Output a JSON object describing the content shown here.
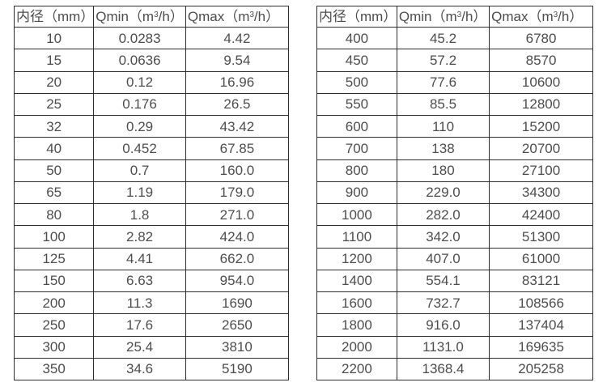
{
  "page": {
    "background_color": "#ffffff",
    "text_color": "#4d4d4d",
    "border_color": "#2e2e2e"
  },
  "tables": [
    {
      "name": "flow-spec-table-small-diameters",
      "headers": [
        {
          "pre": "内径（mm）",
          "sup": "",
          "post": ""
        },
        {
          "pre": "Qmin（m",
          "sup": "3",
          "post": "/h）"
        },
        {
          "pre": "Qmax（m",
          "sup": "3",
          "post": "/h）"
        }
      ],
      "rows": [
        [
          "10",
          "0.0283",
          "4.42"
        ],
        [
          "15",
          "0.0636",
          "9.54"
        ],
        [
          "20",
          "0.12",
          "16.96"
        ],
        [
          "25",
          "0.176",
          "26.5"
        ],
        [
          "32",
          "0.29",
          "43.42"
        ],
        [
          "40",
          "0.452",
          "67.85"
        ],
        [
          "50",
          "0.7",
          "160.0"
        ],
        [
          "65",
          "1.19",
          "179.0"
        ],
        [
          "80",
          "1.8",
          "271.0"
        ],
        [
          "100",
          "2.82",
          "424.0"
        ],
        [
          "125",
          "4.41",
          "662.0"
        ],
        [
          "150",
          "6.63",
          "954.0"
        ],
        [
          "200",
          "11.3",
          "1690"
        ],
        [
          "250",
          "17.6",
          "2650"
        ],
        [
          "300",
          "25.4",
          "3810"
        ],
        [
          "350",
          "34.6",
          "5190"
        ]
      ]
    },
    {
      "name": "flow-spec-table-large-diameters",
      "headers": [
        {
          "pre": "内径（mm）",
          "sup": "",
          "post": ""
        },
        {
          "pre": "Qmin（m",
          "sup": "3",
          "post": "/h）"
        },
        {
          "pre": "Qmax（m",
          "sup": "3",
          "post": "/h）"
        }
      ],
      "rows": [
        [
          "400",
          "45.2",
          "6780"
        ],
        [
          "450",
          "57.2",
          "8570"
        ],
        [
          "500",
          "77.6",
          "10600"
        ],
        [
          "550",
          "85.5",
          "12800"
        ],
        [
          "600",
          "110",
          "15200"
        ],
        [
          "700",
          "138",
          "20700"
        ],
        [
          "800",
          "180",
          "27100"
        ],
        [
          "900",
          "229.0",
          "34300"
        ],
        [
          "1000",
          "282.0",
          "42400"
        ],
        [
          "1100",
          "342.0",
          "51300"
        ],
        [
          "1200",
          "407.0",
          "61000"
        ],
        [
          "1400",
          "554.1",
          "83121"
        ],
        [
          "1600",
          "732.7",
          "108566"
        ],
        [
          "1800",
          "916.0",
          "137404"
        ],
        [
          "2000",
          "1131.0",
          "169635"
        ],
        [
          "2200",
          "1368.4",
          "205258"
        ]
      ]
    }
  ],
  "cell_names": [
    "diameter-cell",
    "qmin-cell",
    "qmax-cell"
  ]
}
